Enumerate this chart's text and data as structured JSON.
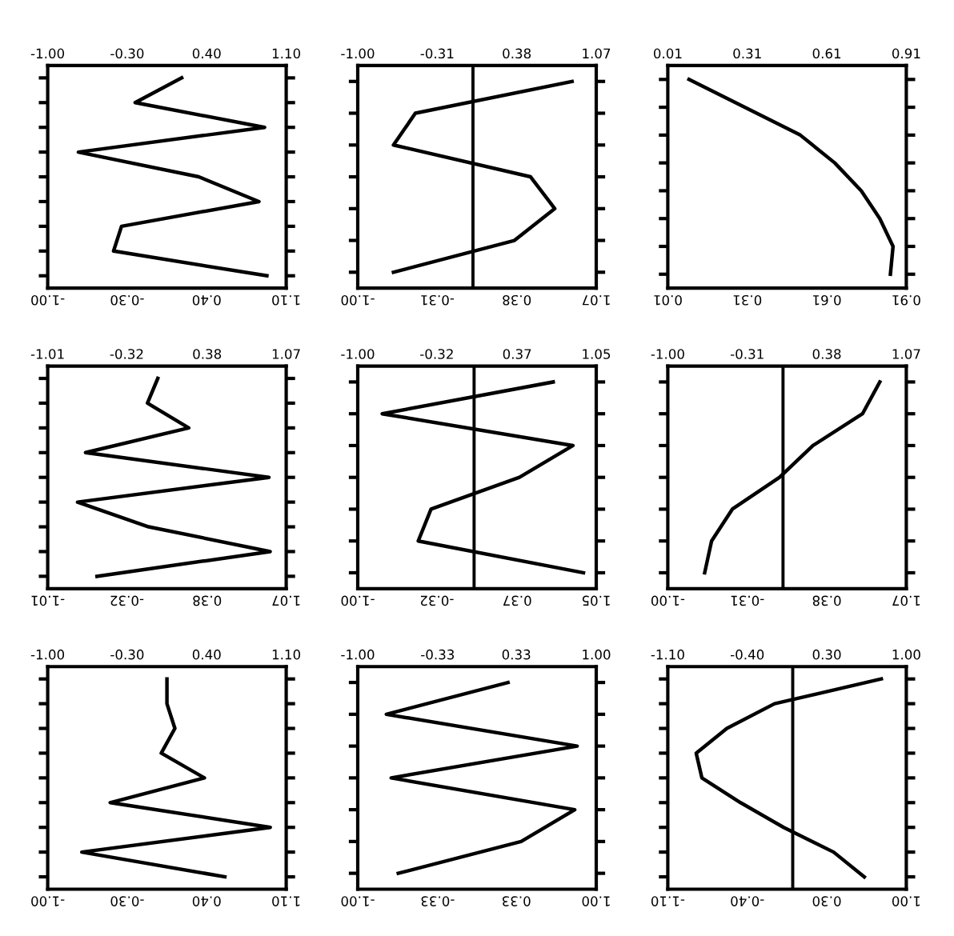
{
  "chart_data": [
    {
      "type": "line",
      "orientation": "horizontal",
      "categories": [
        null,
        null,
        null,
        null,
        null,
        null,
        null,
        null,
        null
      ],
      "series": [
        {
          "color": "#000000",
          "values": [
            0.18,
            -0.23,
            0.91,
            -0.73,
            0.33,
            0.86,
            -0.35,
            -0.42,
            0.93
          ]
        }
      ],
      "xlim": [
        -1.0,
        1.1
      ],
      "xticks": [
        {
          "value": -1.0,
          "label": "-1.00"
        },
        {
          "value": -0.3,
          "label": "-0.30"
        },
        {
          "value": 0.4,
          "label": "0.40"
        },
        {
          "value": 1.1,
          "label": "1.10"
        }
      ],
      "x2lim": [
        -1.0,
        1.1
      ],
      "x2ticks": [
        {
          "value": -1.0,
          "label": "-1.00"
        },
        {
          "value": -0.3,
          "label": "-0.30"
        },
        {
          "value": 0.4,
          "label": "0.40"
        },
        {
          "value": 1.1,
          "label": "1.10"
        }
      ]
    },
    {
      "type": "line",
      "orientation": "horizontal",
      "categories": [
        null,
        null,
        null,
        null,
        null,
        null,
        null
      ],
      "series": [
        {
          "color": "#000000",
          "values": [
            0.86,
            -0.5,
            -0.69,
            0.5,
            0.71,
            0.36,
            -0.69
          ]
        }
      ],
      "xlim": [
        -1.0,
        1.07
      ],
      "xticks": [
        {
          "value": -1.0,
          "label": "-1.00"
        },
        {
          "value": -0.31,
          "label": "-0.31"
        },
        {
          "value": 0.38,
          "label": "0.38"
        },
        {
          "value": 1.07,
          "label": "1.07"
        }
      ],
      "x2lim": [
        -1.0,
        1.07
      ],
      "x2ticks": [
        {
          "value": -1.0,
          "label": "-1.00"
        },
        {
          "value": -0.31,
          "label": "-0.31"
        },
        {
          "value": 0.38,
          "label": "0.38"
        },
        {
          "value": 1.07,
          "label": "1.07"
        }
      ],
      "ref_lines": [
        {
          "axis": "x",
          "value": 0,
          "color": "#000000"
        }
      ]
    },
    {
      "type": "line",
      "orientation": "horizontal",
      "categories": [
        null,
        null,
        null,
        null,
        null,
        null,
        null,
        null
      ],
      "series": [
        {
          "color": "#000000",
          "values": [
            0.09,
            0.3,
            0.51,
            0.64,
            0.74,
            0.81,
            0.86,
            0.85
          ]
        }
      ],
      "xlim": [
        0.01,
        0.91
      ],
      "xticks": [
        {
          "value": 0.01,
          "label": "0.01"
        },
        {
          "value": 0.31,
          "label": "0.31"
        },
        {
          "value": 0.61,
          "label": "0.61"
        },
        {
          "value": 0.91,
          "label": "0.91"
        }
      ],
      "x2lim": [
        0.01,
        0.91
      ],
      "x2ticks": [
        {
          "value": 0.01,
          "label": "0.01"
        },
        {
          "value": 0.31,
          "label": "0.31"
        },
        {
          "value": 0.61,
          "label": "0.61"
        },
        {
          "value": 0.91,
          "label": "0.91"
        }
      ]
    },
    {
      "type": "line",
      "orientation": "horizontal",
      "categories": [
        null,
        null,
        null,
        null,
        null,
        null,
        null,
        null,
        null
      ],
      "series": [
        {
          "color": "#000000",
          "values": [
            -0.05,
            -0.14,
            0.22,
            -0.68,
            0.92,
            -0.75,
            -0.13,
            0.93,
            -0.58
          ]
        }
      ],
      "xlim": [
        -1.01,
        1.07
      ],
      "xticks": [
        {
          "value": -1.01,
          "label": "-1.01"
        },
        {
          "value": -0.32,
          "label": "-0.32"
        },
        {
          "value": 0.38,
          "label": "0.38"
        },
        {
          "value": 1.07,
          "label": "1.07"
        }
      ],
      "x2lim": [
        -1.01,
        1.07
      ],
      "x2ticks": [
        {
          "value": -1.01,
          "label": "-1.01"
        },
        {
          "value": -0.32,
          "label": "-0.32"
        },
        {
          "value": 0.38,
          "label": "0.38"
        },
        {
          "value": 1.07,
          "label": "1.07"
        }
      ]
    },
    {
      "type": "line",
      "orientation": "horizontal",
      "categories": [
        null,
        null,
        null,
        null,
        null,
        null,
        null
      ],
      "series": [
        {
          "color": "#000000",
          "values": [
            0.68,
            -0.79,
            0.85,
            0.39,
            -0.37,
            -0.48,
            0.94
          ]
        }
      ],
      "xlim": [
        -1.0,
        1.05
      ],
      "xticks": [
        {
          "value": -1.0,
          "label": "-1.00"
        },
        {
          "value": -0.32,
          "label": "-0.32"
        },
        {
          "value": 0.37,
          "label": "0.37"
        },
        {
          "value": 1.05,
          "label": "1.05"
        }
      ],
      "x2lim": [
        -1.0,
        1.05
      ],
      "x2ticks": [
        {
          "value": -1.0,
          "label": "-1.00"
        },
        {
          "value": -0.32,
          "label": "-0.32"
        },
        {
          "value": 0.37,
          "label": "0.37"
        },
        {
          "value": 1.05,
          "label": "1.05"
        }
      ],
      "ref_lines": [
        {
          "axis": "x",
          "value": 0,
          "color": "#000000"
        }
      ]
    },
    {
      "type": "line",
      "orientation": "horizontal",
      "categories": [
        null,
        null,
        null,
        null,
        null,
        null,
        null
      ],
      "series": [
        {
          "color": "#000000",
          "values": [
            0.84,
            0.69,
            0.26,
            -0.03,
            -0.44,
            -0.62,
            -0.68
          ]
        }
      ],
      "xlim": [
        -1.0,
        1.07
      ],
      "xticks": [
        {
          "value": -1.0,
          "label": "-1.00"
        },
        {
          "value": -0.31,
          "label": "-0.31"
        },
        {
          "value": 0.38,
          "label": "0.38"
        },
        {
          "value": 1.07,
          "label": "1.07"
        }
      ],
      "x2lim": [
        -1.0,
        1.07
      ],
      "x2ticks": [
        {
          "value": -1.0,
          "label": "-1.00"
        },
        {
          "value": -0.31,
          "label": "-0.31"
        },
        {
          "value": 0.38,
          "label": "0.38"
        },
        {
          "value": 1.07,
          "label": "1.07"
        }
      ],
      "ref_lines": [
        {
          "axis": "x",
          "value": 0,
          "color": "#000000"
        }
      ]
    },
    {
      "type": "line",
      "orientation": "horizontal",
      "categories": [
        null,
        null,
        null,
        null,
        null,
        null,
        null,
        null,
        null
      ],
      "series": [
        {
          "color": "#000000",
          "values": [
            0.05,
            0.05,
            0.12,
            0.0,
            0.38,
            -0.45,
            0.96,
            -0.7,
            0.56
          ]
        }
      ],
      "xlim": [
        -1.0,
        1.1
      ],
      "xticks": [
        {
          "value": -1.0,
          "label": "-1.00"
        },
        {
          "value": -0.3,
          "label": "-0.30"
        },
        {
          "value": 0.4,
          "label": "0.40"
        },
        {
          "value": 1.1,
          "label": "1.10"
        }
      ],
      "x2lim": [
        -1.0,
        1.1
      ],
      "x2ticks": [
        {
          "value": -1.0,
          "label": "-1.00"
        },
        {
          "value": -0.3,
          "label": "-0.30"
        },
        {
          "value": 0.4,
          "label": "0.40"
        },
        {
          "value": 1.1,
          "label": "1.10"
        }
      ]
    },
    {
      "type": "line",
      "orientation": "horizontal",
      "categories": [
        null,
        null,
        null,
        null,
        null,
        null,
        null
      ],
      "series": [
        {
          "color": "#000000",
          "values": [
            0.26,
            -0.76,
            0.84,
            -0.72,
            0.82,
            0.37,
            -0.66
          ]
        }
      ],
      "xlim": [
        -1.0,
        1.0
      ],
      "xticks": [
        {
          "value": -1.0,
          "label": "-1.00"
        },
        {
          "value": -0.33,
          "label": "-0.33"
        },
        {
          "value": 0.33,
          "label": "0.33"
        },
        {
          "value": 1.0,
          "label": "1.00"
        }
      ],
      "x2lim": [
        -1.0,
        1.0
      ],
      "x2ticks": [
        {
          "value": -1.0,
          "label": "-1.00"
        },
        {
          "value": -0.33,
          "label": "-0.33"
        },
        {
          "value": 0.33,
          "label": "0.33"
        },
        {
          "value": 1.0,
          "label": "1.00"
        }
      ]
    },
    {
      "type": "line",
      "orientation": "horizontal",
      "categories": [
        null,
        null,
        null,
        null,
        null,
        null,
        null,
        null,
        null
      ],
      "series": [
        {
          "color": "#000000",
          "values": [
            0.78,
            -0.16,
            -0.58,
            -0.85,
            -0.8,
            -0.46,
            -0.08,
            0.36,
            0.63
          ]
        }
      ],
      "xlim": [
        -1.1,
        1.0
      ],
      "xticks": [
        {
          "value": -1.1,
          "label": "-1.10"
        },
        {
          "value": -0.4,
          "label": "-0.40"
        },
        {
          "value": 0.3,
          "label": "0.30"
        },
        {
          "value": 1.0,
          "label": "1.00"
        }
      ],
      "x2lim": [
        -1.1,
        1.0
      ],
      "x2ticks": [
        {
          "value": -1.1,
          "label": "-1.10"
        },
        {
          "value": -0.4,
          "label": "-0.40"
        },
        {
          "value": 0.3,
          "label": "0.30"
        },
        {
          "value": 1.0,
          "label": "1.00"
        }
      ],
      "ref_lines": [
        {
          "axis": "x",
          "value": 0,
          "color": "#000000"
        }
      ]
    }
  ]
}
